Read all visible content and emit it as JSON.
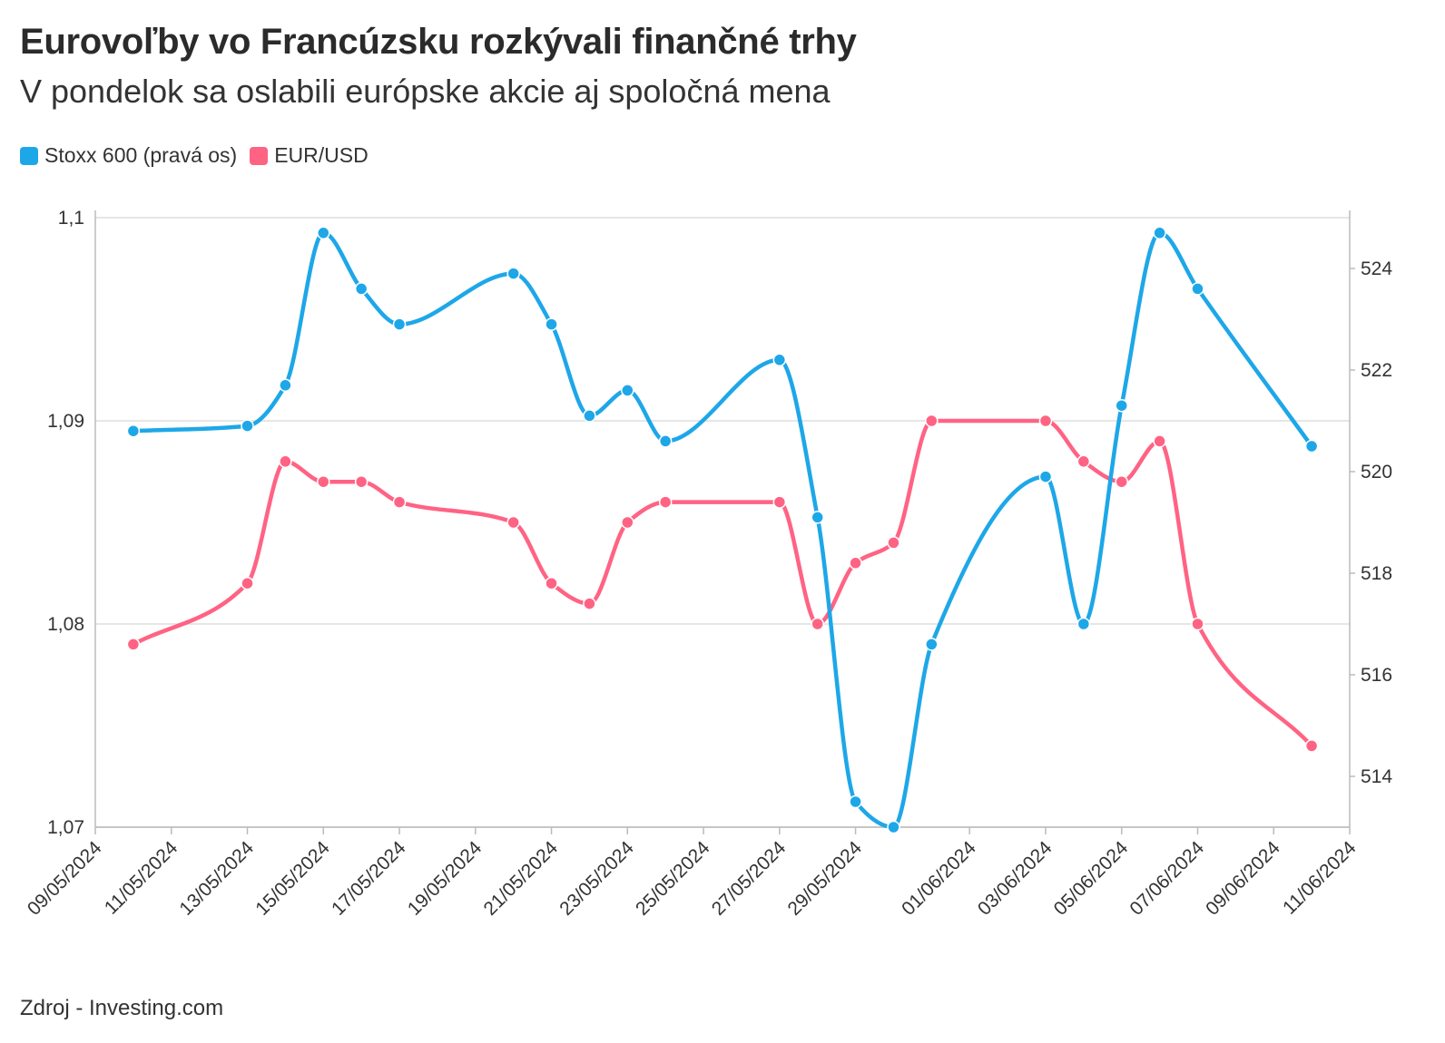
{
  "title": "Eurovoľby vo Francúzsku rozkývali finančné trhy",
  "subtitle": "V pondelok sa oslabili európske akcie aj spoločná mena",
  "source": "Zdroj - Investing.com",
  "colors": {
    "stoxx": "#1ea7e8",
    "eurusd": "#ff6384",
    "grid": "#e6e6e6",
    "axis": "#bbbbbb"
  },
  "chart_data": {
    "type": "line",
    "x_tick_labels": [
      "09/05/2024",
      "11/05/2024",
      "13/05/2024",
      "15/05/2024",
      "17/05/2024",
      "19/05/2024",
      "21/05/2024",
      "23/05/2024",
      "25/05/2024",
      "27/05/2024",
      "29/05/2024",
      "01/06/2024",
      "03/06/2024",
      "05/06/2024",
      "07/06/2024",
      "09/06/2024",
      "11/06/2024"
    ],
    "x_range": [
      "2024-05-09",
      "2024-06-11"
    ],
    "left_axis": {
      "ticks": [
        "1,07",
        "1,08",
        "1,09",
        "1,1"
      ],
      "ylim": [
        1.07,
        1.1
      ]
    },
    "right_axis": {
      "ticks": [
        "514",
        "516",
        "518",
        "520",
        "522",
        "524"
      ],
      "ylim": [
        513.0,
        525.0
      ]
    },
    "series": [
      {
        "name": "Stoxx 600 (pravá os)",
        "axis": "right",
        "color_key": "stoxx",
        "points": [
          [
            "2024-05-10",
            520.8
          ],
          [
            "2024-05-13",
            520.9
          ],
          [
            "2024-05-14",
            521.7
          ],
          [
            "2024-05-15",
            524.7
          ],
          [
            "2024-05-16",
            523.6
          ],
          [
            "2024-05-17",
            522.9
          ],
          [
            "2024-05-20",
            523.9
          ],
          [
            "2024-05-21",
            522.9
          ],
          [
            "2024-05-22",
            521.1
          ],
          [
            "2024-05-23",
            521.6
          ],
          [
            "2024-05-24",
            520.6
          ],
          [
            "2024-05-27",
            522.2
          ],
          [
            "2024-05-28",
            519.1
          ],
          [
            "2024-05-29",
            513.5
          ],
          [
            "2024-05-30",
            513.0
          ],
          [
            "2024-05-31",
            516.6
          ],
          [
            "2024-06-03",
            519.9
          ],
          [
            "2024-06-04",
            517.0
          ],
          [
            "2024-06-05",
            521.3
          ],
          [
            "2024-06-06",
            524.7
          ],
          [
            "2024-06-07",
            523.6
          ],
          [
            "2024-06-10",
            520.5
          ]
        ]
      },
      {
        "name": "EUR/USD",
        "axis": "left",
        "color_key": "eurusd",
        "points": [
          [
            "2024-05-10",
            1.079
          ],
          [
            "2024-05-13",
            1.082
          ],
          [
            "2024-05-14",
            1.088
          ],
          [
            "2024-05-15",
            1.087
          ],
          [
            "2024-05-16",
            1.087
          ],
          [
            "2024-05-17",
            1.086
          ],
          [
            "2024-05-20",
            1.085
          ],
          [
            "2024-05-21",
            1.082
          ],
          [
            "2024-05-22",
            1.081
          ],
          [
            "2024-05-23",
            1.085
          ],
          [
            "2024-05-24",
            1.086
          ],
          [
            "2024-05-27",
            1.086
          ],
          [
            "2024-05-28",
            1.08
          ],
          [
            "2024-05-29",
            1.083
          ],
          [
            "2024-05-30",
            1.084
          ],
          [
            "2024-05-31",
            1.09
          ],
          [
            "2024-06-03",
            1.09
          ],
          [
            "2024-06-04",
            1.088
          ],
          [
            "2024-06-05",
            1.087
          ],
          [
            "2024-06-06",
            1.089
          ],
          [
            "2024-06-07",
            1.08
          ],
          [
            "2024-06-10",
            1.074
          ]
        ]
      }
    ],
    "grid": true,
    "legend_position": "top-left"
  }
}
